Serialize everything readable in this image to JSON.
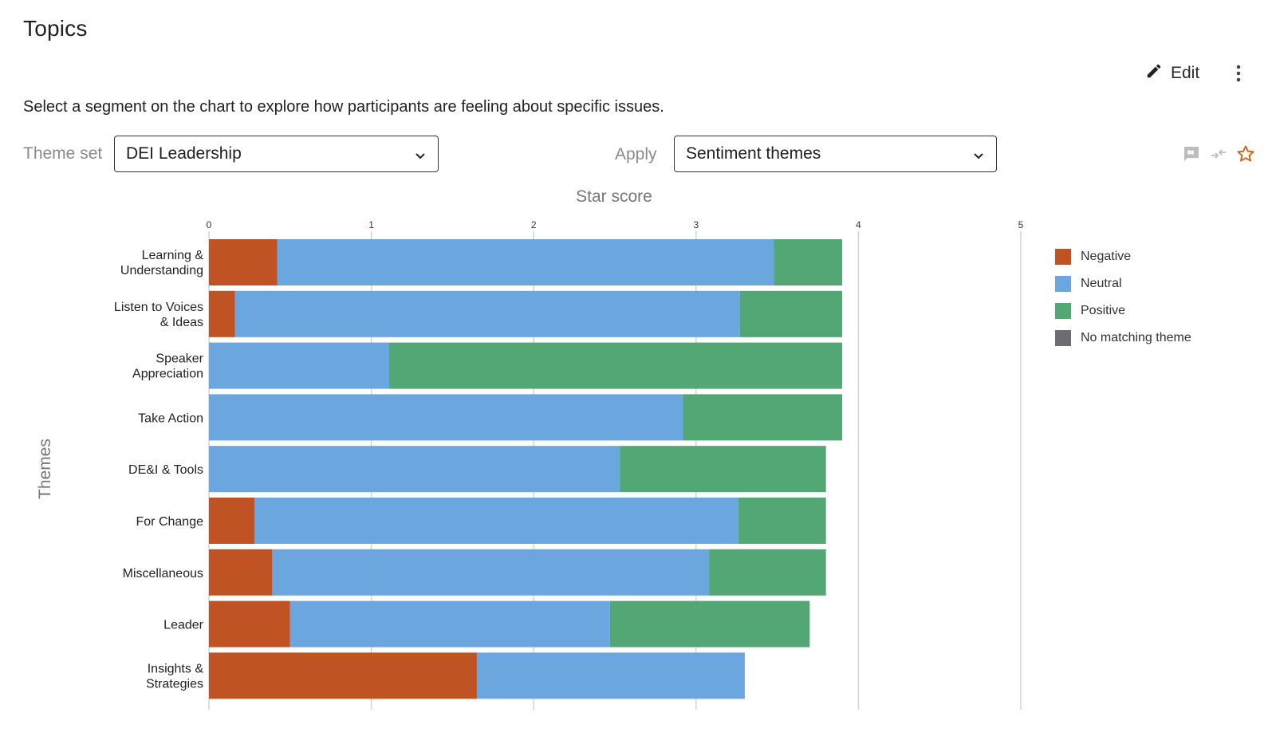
{
  "header": {
    "title": "Topics",
    "edit_label": "Edit",
    "subtitle": "Select a segment on the chart to explore how participants are feeling about specific issues."
  },
  "filters": {
    "theme_set_label": "Theme set",
    "theme_set_value": "DEI Leadership",
    "apply_label": "Apply",
    "apply_value": "Sentiment themes"
  },
  "toolbar": {
    "icons": [
      "comment-tag-icon",
      "compare-arrows-icon",
      "star-outline-icon"
    ],
    "accent_color": "#d2691e"
  },
  "legend": [
    {
      "name": "Negative",
      "color": "#bf5324"
    },
    {
      "name": "Neutral",
      "color": "#6ca6de"
    },
    {
      "name": "Positive",
      "color": "#52a775"
    },
    {
      "name": "No matching theme",
      "color": "#6b6d70"
    }
  ],
  "chart_data": {
    "type": "bar",
    "orientation": "horizontal",
    "stacked": true,
    "title": "Star score",
    "ylabel": "Themes",
    "xlim": [
      0,
      5
    ],
    "xticks": [
      "0",
      "1",
      "2",
      "3",
      "4",
      "5"
    ],
    "grid": true,
    "legend_position": "right",
    "categories": [
      "Learning & Understanding",
      "Listen to Voices & Ideas",
      "Speaker Appreciation",
      "Take Action",
      "DE&I & Tools",
      "For Change",
      "Miscellaneous",
      "Leader",
      "Insights & Strategies"
    ],
    "series": [
      {
        "name": "Negative",
        "color": "#bf5324",
        "values": [
          0.42,
          0.16,
          0,
          0,
          0,
          0.28,
          0.39,
          0.5,
          1.65
        ]
      },
      {
        "name": "Neutral",
        "color": "#6ca6de",
        "values": [
          3.06,
          3.11,
          1.11,
          2.92,
          2.53,
          2.98,
          2.69,
          1.97,
          1.65
        ]
      },
      {
        "name": "Positive",
        "color": "#52a775",
        "values": [
          0.42,
          0.63,
          2.79,
          0.98,
          1.27,
          0.54,
          0.72,
          1.23,
          0
        ]
      },
      {
        "name": "No matching theme",
        "color": "#6b6d70",
        "values": [
          0,
          0,
          0,
          0,
          0,
          0,
          0,
          0,
          0
        ]
      }
    ]
  }
}
